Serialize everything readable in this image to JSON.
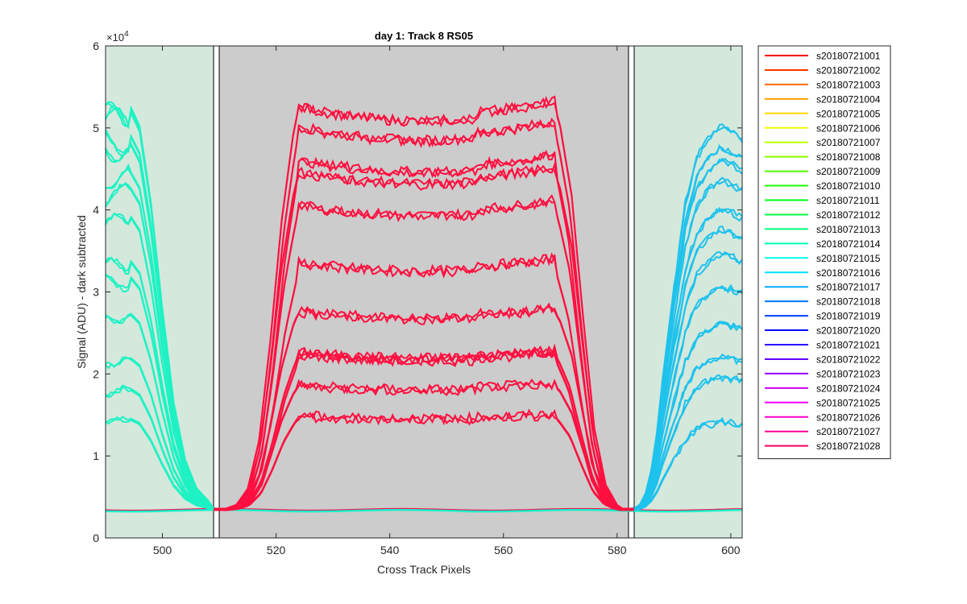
{
  "chart_data": {
    "type": "line",
    "title": "day 1: Track 8  RS05",
    "xlabel": "Cross Track Pixels",
    "ylabel": "Signal (ADU) - dark subtracted",
    "y_exponent_label": "×10",
    "y_exponent_power": "4",
    "xlim": [
      490,
      602
    ],
    "ylim": [
      0,
      6
    ],
    "x_ticks": [
      500,
      520,
      540,
      560,
      580,
      600
    ],
    "y_ticks": [
      0,
      1,
      2,
      3,
      4,
      5,
      6
    ],
    "y_tick_labels": [
      "0",
      "1",
      "2",
      "3",
      "4",
      "5",
      "6"
    ],
    "x_tick_labels": [
      "500",
      "520",
      "540",
      "560",
      "580",
      "600"
    ],
    "background": "#ffffff",
    "regions": [
      {
        "x0": 490,
        "x1": 509,
        "color": "#d5e8dc"
      },
      {
        "x0": 510,
        "x1": 582,
        "color": "#cccccc"
      },
      {
        "x0": 583,
        "x1": 602,
        "color": "#d5e8dc"
      }
    ],
    "markers": [
      {
        "x0": 509,
        "x1": 510
      },
      {
        "x0": 582,
        "x1": 583
      }
    ],
    "baseline": 0.34,
    "left_channel": {
      "color": "#1ef2c4",
      "x_start": 490,
      "plateau_end": 494,
      "decay_x": [
        494,
        496,
        498,
        500,
        502,
        504,
        506,
        508,
        509
      ],
      "decay_frac": [
        1.0,
        0.94,
        0.75,
        0.49,
        0.26,
        0.12,
        0.05,
        0.02,
        0.0
      ],
      "peaks": [
        5.25,
        5.3,
        4.95,
        4.85,
        4.5,
        4.3,
        3.95,
        3.4,
        3.2,
        2.75,
        2.2,
        1.82,
        1.45
      ]
    },
    "right_channel": {
      "color": "#1ec2ec",
      "x_end": 602,
      "rise_x": [
        583,
        584,
        585,
        586,
        587,
        588,
        590,
        592,
        594,
        596,
        598,
        600,
        602
      ],
      "rise_frac": [
        0.0,
        0.01,
        0.04,
        0.1,
        0.2,
        0.34,
        0.58,
        0.8,
        0.92,
        0.97,
        1.0,
        0.99,
        0.97
      ],
      "peaks": [
        5.0,
        4.75,
        4.6,
        4.35,
        4.0,
        3.75,
        3.45,
        3.05,
        2.6,
        2.2,
        1.95,
        1.4
      ]
    },
    "center_channel": {
      "color": "#ff1040",
      "rise_x": [
        511,
        513,
        515,
        517,
        519,
        521,
        523,
        524
      ],
      "rise_frac": [
        0.0,
        0.01,
        0.05,
        0.17,
        0.42,
        0.72,
        0.93,
        1.0
      ],
      "fall_x": [
        569,
        570,
        572,
        574,
        576,
        578,
        580,
        581
      ],
      "fall_frac": [
        1.0,
        0.95,
        0.78,
        0.48,
        0.2,
        0.06,
        0.01,
        0.0
      ],
      "levels": [
        5.25,
        5.0,
        4.6,
        4.45,
        4.05,
        3.35,
        2.75,
        2.25,
        2.22,
        1.85,
        1.48
      ],
      "sag": 0.035
    },
    "series": [
      {
        "name": "s20180721001",
        "color": "#ff0000"
      },
      {
        "name": "s20180721002",
        "color": "#ff3500"
      },
      {
        "name": "s20180721003",
        "color": "#ff6a00"
      },
      {
        "name": "s20180721004",
        "color": "#ffa000"
      },
      {
        "name": "s20180721005",
        "color": "#ffd500"
      },
      {
        "name": "s20180721006",
        "color": "#f5ff00"
      },
      {
        "name": "s20180721007",
        "color": "#c0ff00"
      },
      {
        "name": "s20180721008",
        "color": "#8aff00"
      },
      {
        "name": "s20180721009",
        "color": "#55ff00"
      },
      {
        "name": "s20180721010",
        "color": "#20ff00"
      },
      {
        "name": "s20180721011",
        "color": "#00ff15"
      },
      {
        "name": "s20180721012",
        "color": "#00ff4a"
      },
      {
        "name": "s20180721013",
        "color": "#00ff80"
      },
      {
        "name": "s20180721014",
        "color": "#00ffb5"
      },
      {
        "name": "s20180721015",
        "color": "#00ffea"
      },
      {
        "name": "s20180721016",
        "color": "#00dfff"
      },
      {
        "name": "s20180721017",
        "color": "#00aaff"
      },
      {
        "name": "s20180721018",
        "color": "#0075ff"
      },
      {
        "name": "s20180721019",
        "color": "#0040ff"
      },
      {
        "name": "s20180721020",
        "color": "#000aff"
      },
      {
        "name": "s20180721021",
        "color": "#2a00ff"
      },
      {
        "name": "s20180721022",
        "color": "#6000ff"
      },
      {
        "name": "s20180721023",
        "color": "#9500ff"
      },
      {
        "name": "s20180721024",
        "color": "#ca00ff"
      },
      {
        "name": "s20180721025",
        "color": "#ff00ff"
      },
      {
        "name": "s20180721026",
        "color": "#ff00ca"
      },
      {
        "name": "s20180721027",
        "color": "#ff0095"
      },
      {
        "name": "s20180721028",
        "color": "#ff0060"
      }
    ],
    "legend_position": "outside-right",
    "grid": false
  }
}
